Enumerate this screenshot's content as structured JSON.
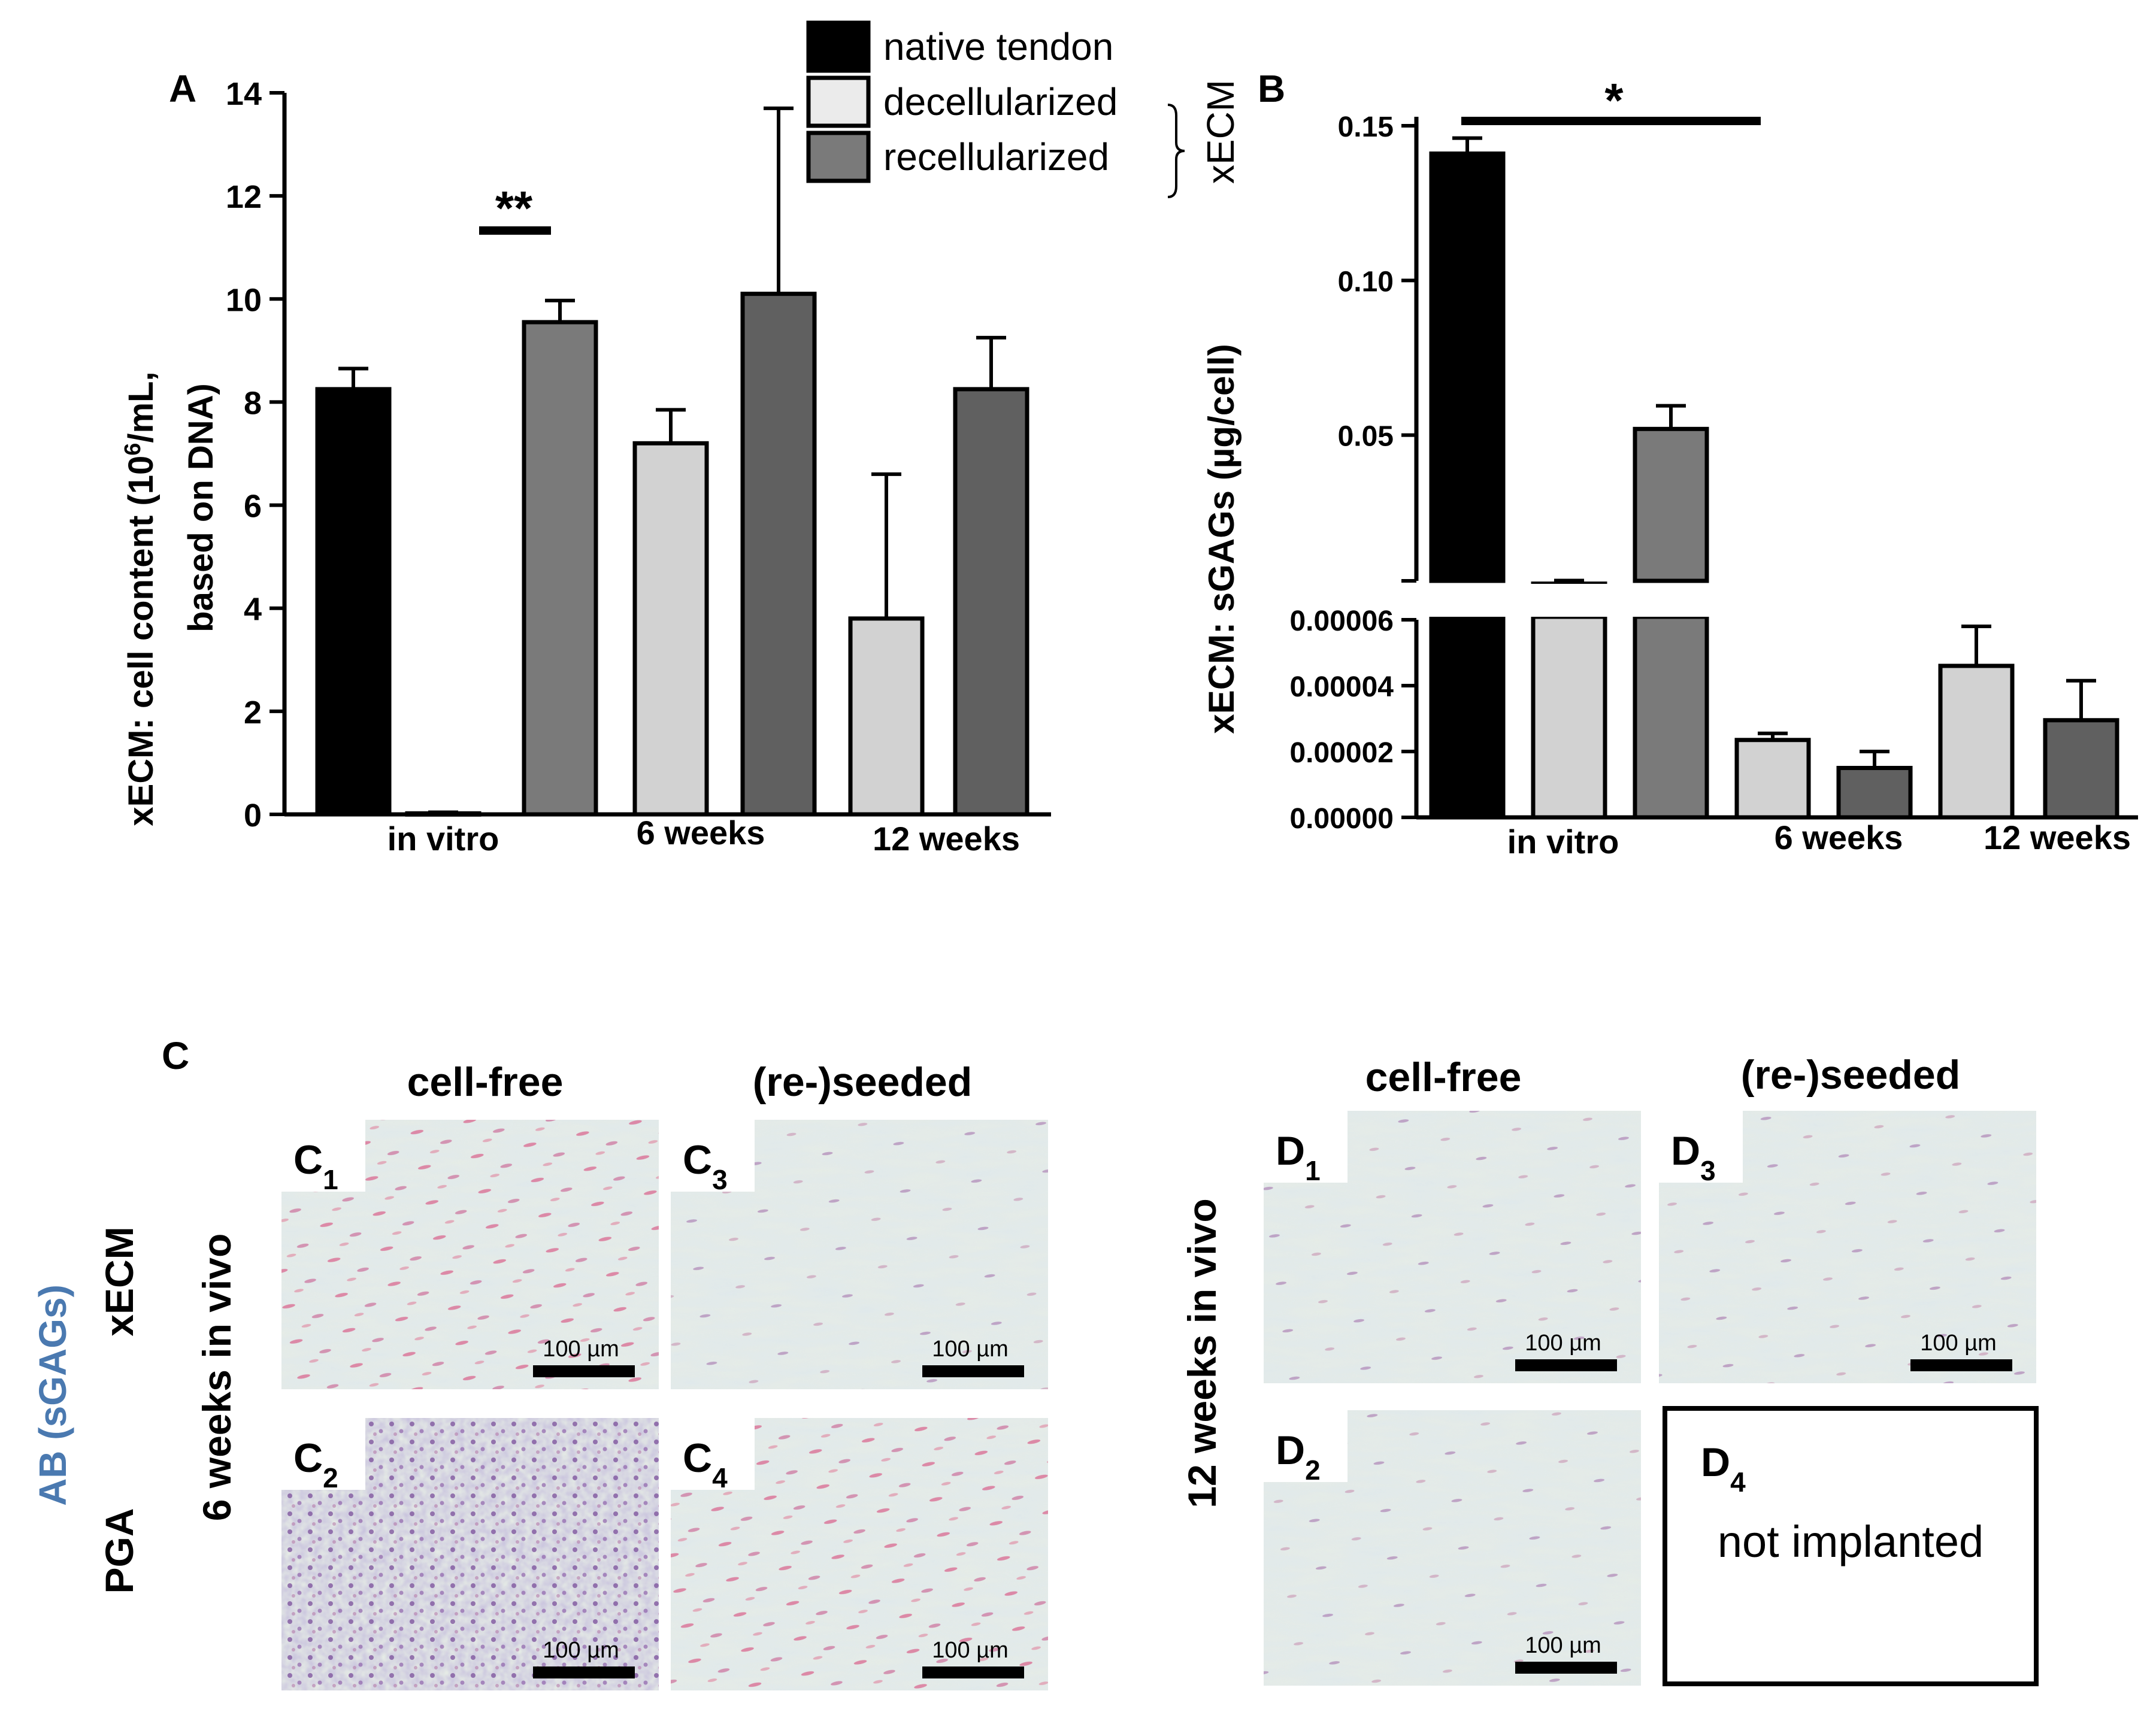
{
  "figure": {
    "legend": {
      "items": [
        {
          "label": "native tendon",
          "color": "#000000"
        },
        {
          "label": "decellularized",
          "color": "#ebebeb"
        },
        {
          "label": "recellularized",
          "color": "#7a7a7a"
        }
      ],
      "bracket_label": "xECM"
    },
    "colors": {
      "native": "#000000",
      "decell": "#d2d2d2",
      "decell_legend": "#ebebeb",
      "recell_a": "#7a7a7a",
      "recell_late": "#606060",
      "background": "#ffffff"
    },
    "panel_c": {
      "letter": "C",
      "col_headers": [
        "cell-free",
        "(re-)seeded"
      ],
      "timepoint": "6 weeks in vivo",
      "stain": "AB (sGAGs)",
      "row_labels": [
        "xECM",
        "PGA"
      ],
      "tiles": [
        {
          "id": "C",
          "sub": "1",
          "scale": "100 µm"
        },
        {
          "id": "C",
          "sub": "3",
          "scale": "100 µm"
        },
        {
          "id": "C",
          "sub": "2",
          "scale": "100 µm"
        },
        {
          "id": "C",
          "sub": "4",
          "scale": "100 µm"
        }
      ]
    },
    "panel_d": {
      "col_headers": [
        "cell-free",
        "(re-)seeded"
      ],
      "timepoint": "12 weeks in vivo",
      "tiles": [
        {
          "id": "D",
          "sub": "1",
          "scale": "100 µm"
        },
        {
          "id": "D",
          "sub": "3",
          "scale": "100 µm"
        },
        {
          "id": "D",
          "sub": "2",
          "scale": "100 µm"
        }
      ],
      "empty_tile": {
        "id": "D",
        "sub": "4",
        "text": "not implanted"
      }
    }
  },
  "chart_data": [
    {
      "panel": "A",
      "type": "bar",
      "ylabel_line1": "xECM: cell content (10",
      "ylabel_sup": "6",
      "ylabel_line1_end": "/mL,",
      "ylabel_line2": "based on DNA)",
      "ylim": [
        0,
        14
      ],
      "yticks": [
        0,
        2,
        4,
        6,
        8,
        10,
        12,
        14
      ],
      "groups": [
        "in vitro",
        "6 weeks",
        "12 weeks"
      ],
      "bars": [
        {
          "group": "in vitro",
          "series": "native tendon",
          "value": 8.25,
          "error": 0.4
        },
        {
          "group": "in vitro",
          "series": "decellularized",
          "value": 0.02,
          "error": 0.02
        },
        {
          "group": "in vitro",
          "series": "recellularized",
          "value": 9.55,
          "error": 0.42
        },
        {
          "group": "6 weeks",
          "series": "decellularized",
          "value": 7.2,
          "error": 0.65
        },
        {
          "group": "6 weeks",
          "series": "recellularized",
          "value": 10.1,
          "error": 3.6
        },
        {
          "group": "12 weeks",
          "series": "decellularized",
          "value": 3.8,
          "error": 2.8
        },
        {
          "group": "12 weeks",
          "series": "recellularized",
          "value": 8.25,
          "error": 1.0
        }
      ],
      "significance": {
        "label": "**",
        "between": [
          "decellularized in vitro",
          "recellularized in vitro"
        ]
      }
    },
    {
      "panel": "B",
      "type": "bar",
      "ylabel": "xECM: sGAGs (µg/cell)",
      "broken_axis": true,
      "upper_ylim": [
        0,
        0.15
      ],
      "upper_yticks": [
        "0.05",
        "0.10",
        "0.15"
      ],
      "lower_ylim": [
        0,
        6e-05
      ],
      "lower_yticks": [
        "0.00000",
        "0.00002",
        "0.00004",
        "0.00006"
      ],
      "groups": [
        "in vitro",
        "6 weeks",
        "12 weeks"
      ],
      "bars": [
        {
          "group": "in vitro",
          "series": "native tendon",
          "value": 0.141,
          "error": 0.005
        },
        {
          "group": "in vitro",
          "series": "decellularized",
          "value": 0.002,
          "error": 0.001
        },
        {
          "group": "in vitro",
          "series": "recellularized",
          "value": 0.052,
          "error": 0.0075
        },
        {
          "group": "6 weeks",
          "series": "decellularized",
          "value": 2.35e-05,
          "error": 2e-06
        },
        {
          "group": "6 weeks",
          "series": "recellularized",
          "value": 1.5e-05,
          "error": 5e-06
        },
        {
          "group": "12 weeks",
          "series": "decellularized",
          "value": 4.6e-05,
          "error": 1.2e-05
        },
        {
          "group": "12 weeks",
          "series": "recellularized",
          "value": 2.95e-05,
          "error": 1.2e-05
        }
      ],
      "significance": {
        "label": "*",
        "between": [
          "native tendon in vitro",
          "recellularized in vitro"
        ]
      }
    }
  ]
}
